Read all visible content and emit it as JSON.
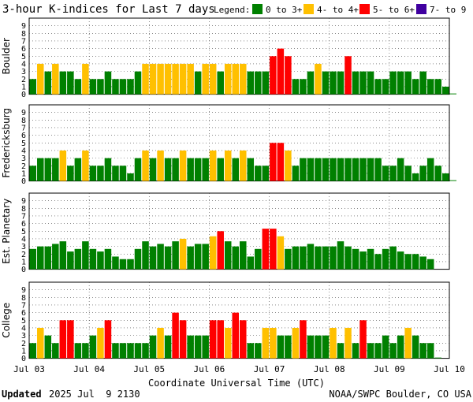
{
  "title": "3-hour K-indices for Last 7 days",
  "legend": {
    "label": "Legend:",
    "items": [
      {
        "label": "0 to 3+",
        "color": "#008000"
      },
      {
        "label": "4- to 4+",
        "color": "#ffc000"
      },
      {
        "label": "5- to 6+",
        "color": "#ff0000"
      },
      {
        "label": "7- to 9",
        "color": "#4000a0"
      }
    ]
  },
  "x_axis": {
    "title": "Coordinate Universal Time (UTC)",
    "ticks": [
      "Jul 03",
      "Jul 04",
      "Jul 05",
      "Jul 06",
      "Jul 07",
      "Jul 08",
      "Jul 09",
      "Jul 10"
    ]
  },
  "footer": {
    "updated_label": "Updated",
    "updated_value": "2025 Jul  9 2130",
    "source": "NOAA/SWPC Boulder, CO USA"
  },
  "chart_data": {
    "type": "bar",
    "ylim": [
      0,
      9
    ],
    "y_ticks": [
      "0",
      "1",
      "2",
      "3",
      "4",
      "5",
      "6",
      "7",
      "8",
      "9"
    ],
    "bins_per_day": 8,
    "panels": [
      {
        "name": "Boulder",
        "values": [
          2,
          4,
          3,
          4,
          3,
          3,
          2,
          4,
          2,
          2,
          3,
          2,
          2,
          2,
          3,
          4,
          4,
          4,
          4,
          4,
          4,
          4,
          3,
          4,
          4,
          3,
          4,
          4,
          4,
          3,
          3,
          3,
          5,
          6,
          5,
          2,
          2,
          3,
          4,
          3,
          3,
          3,
          5,
          3,
          3,
          3,
          2,
          2,
          3,
          3,
          3,
          2,
          3,
          2,
          2,
          1,
          0.1
        ]
      },
      {
        "name": "Fredericksburg",
        "values": [
          2,
          3,
          3,
          3,
          4,
          2,
          3,
          4,
          2,
          2,
          3,
          2,
          2,
          1,
          3,
          4,
          3,
          4,
          3,
          3,
          4,
          3,
          3,
          3,
          4,
          3,
          4,
          3,
          4,
          3,
          2,
          2,
          5,
          5,
          4,
          2,
          3,
          3,
          3,
          3,
          3,
          3,
          3,
          3,
          3,
          3,
          3,
          2,
          2,
          3,
          2,
          1,
          2,
          3,
          2,
          1,
          0.1
        ]
      },
      {
        "name": "Est. Planetary",
        "values": [
          2.67,
          3,
          3,
          3.33,
          3.67,
          2.33,
          2.67,
          3.67,
          2.67,
          2.33,
          2.67,
          1.67,
          1.33,
          1.33,
          2.67,
          3.67,
          3,
          3.33,
          3,
          3.67,
          4,
          3,
          3.33,
          3.33,
          4.33,
          5,
          3.67,
          3,
          3.67,
          1.67,
          2.67,
          5.33,
          5.33,
          4.33,
          2.67,
          3,
          3,
          3.33,
          3,
          3,
          3,
          3.67,
          3,
          2.67,
          2.33,
          2.67,
          2,
          2.67,
          3,
          2.33,
          2,
          2,
          1.67,
          1.33
        ]
      },
      {
        "name": "College",
        "values": [
          2,
          4,
          3,
          2,
          5,
          5,
          2,
          2,
          3,
          4,
          5,
          2,
          2,
          2,
          2,
          2,
          3,
          4,
          3,
          6,
          5,
          3,
          3,
          3,
          5,
          5,
          4,
          6,
          5,
          2,
          2,
          4,
          4,
          3,
          3,
          4,
          5,
          3,
          3,
          3,
          4,
          2,
          4,
          2,
          5,
          2,
          2,
          3,
          2,
          3,
          4,
          3,
          2,
          2,
          0.1
        ]
      }
    ]
  }
}
